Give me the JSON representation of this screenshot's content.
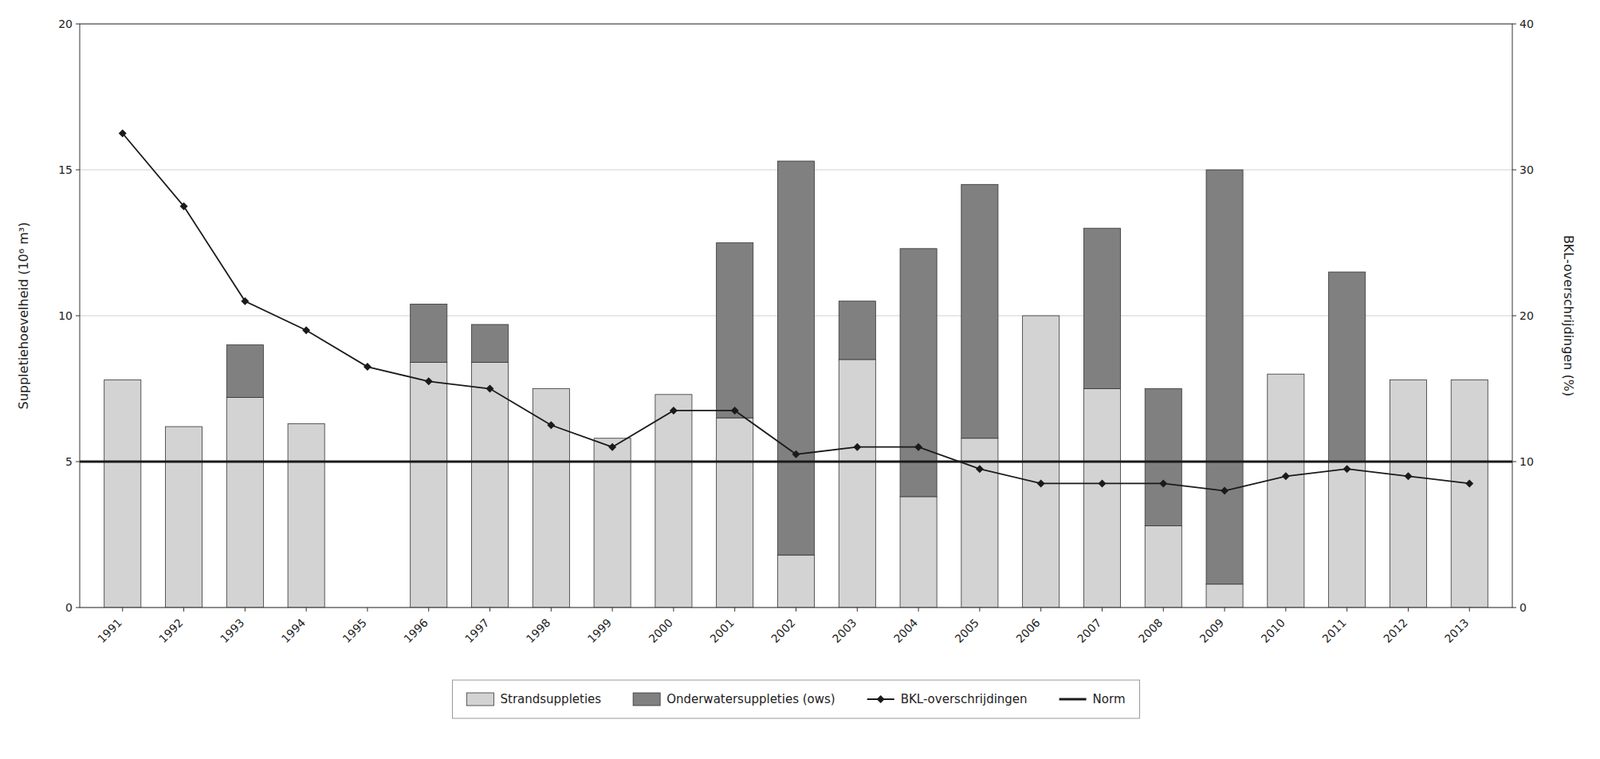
{
  "chart_data": {
    "type": "bar",
    "stacked": true,
    "categories": [
      "1991",
      "1992",
      "1993",
      "1994",
      "1995",
      "1996",
      "1997",
      "1998",
      "1999",
      "2000",
      "2001",
      "2002",
      "2003",
      "2004",
      "2005",
      "2006",
      "2007",
      "2008",
      "2009",
      "2010",
      "2011",
      "2012",
      "2013"
    ],
    "series": [
      {
        "name": "Strandsuppleties",
        "type": "bar",
        "color": "#d3d3d3",
        "values": [
          7.8,
          6.2,
          7.2,
          6.3,
          0.0,
          8.4,
          8.4,
          7.5,
          5.8,
          7.3,
          6.5,
          1.8,
          8.5,
          3.8,
          5.8,
          10.0,
          7.5,
          2.8,
          0.8,
          8.0,
          5.0,
          7.8,
          7.8
        ]
      },
      {
        "name": "Onderwatersuppleties (ows)",
        "type": "bar",
        "color": "#808080",
        "values": [
          0.0,
          0.0,
          1.8,
          0.0,
          0.0,
          2.0,
          1.3,
          0.0,
          0.0,
          0.0,
          6.0,
          13.5,
          2.0,
          8.5,
          8.7,
          0.0,
          5.5,
          4.7,
          14.2,
          0.0,
          6.5,
          0.0,
          0.0
        ]
      },
      {
        "name": "BKL-overschrijdingen",
        "type": "line",
        "axis": "y2",
        "color": "#1a1a1a",
        "marker": "diamond",
        "line_style": "solid",
        "values": [
          32.5,
          27.5,
          21.0,
          19.0,
          16.5,
          15.5,
          15.0,
          12.5,
          11.0,
          13.5,
          13.5,
          10.5,
          11.0,
          11.0,
          9.5,
          8.5,
          8.5,
          8.5,
          8.0,
          9.0,
          9.5,
          9.0,
          8.5
        ]
      }
    ],
    "hlines": [
      {
        "name": "Norm",
        "value": 5.0,
        "color": "#1a1a1a"
      }
    ],
    "ylabel": "Suppletiehoevelheid (10⁶ m³)",
    "y2label": "BKL-overschrijdingen (%)",
    "ylim": [
      0,
      20
    ],
    "yticks": [
      0,
      5,
      10,
      15,
      20
    ],
    "y2lim": [
      0,
      40
    ],
    "y2ticks": [
      0,
      10,
      20,
      30,
      40
    ],
    "grid": true,
    "legend": "bottom"
  }
}
